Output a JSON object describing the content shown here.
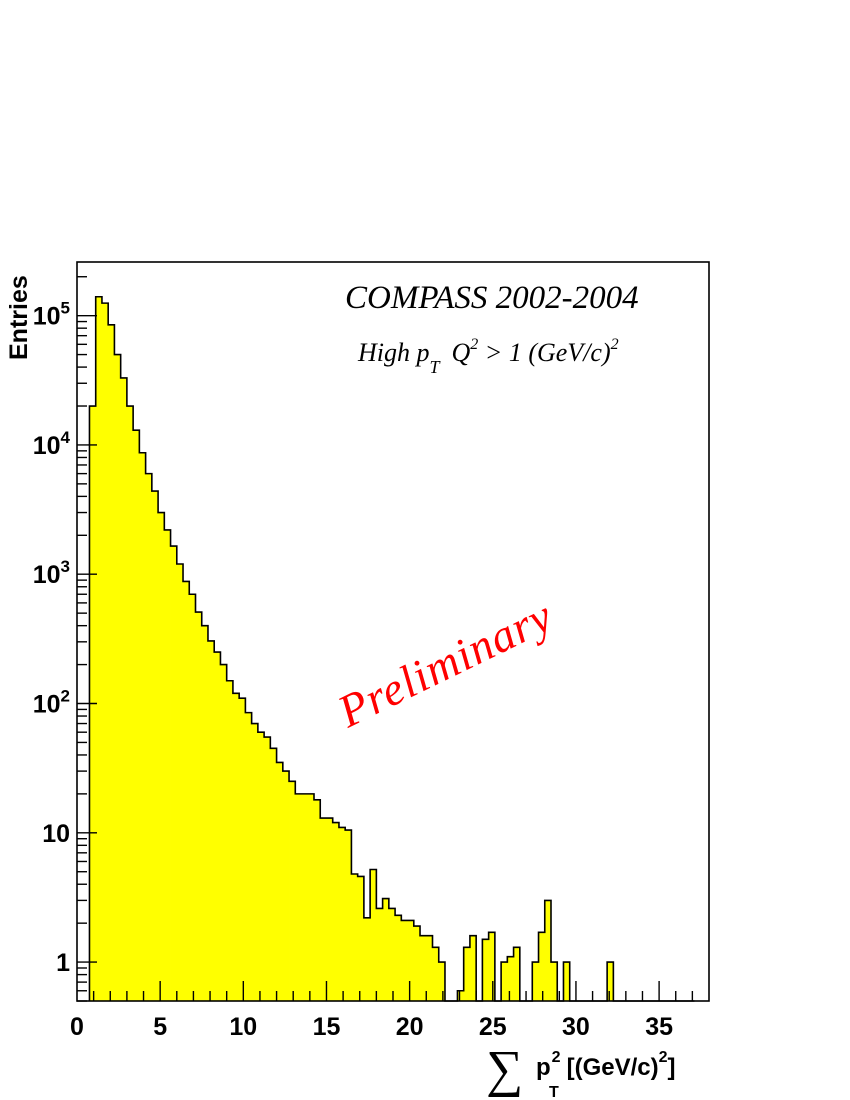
{
  "chart_data": {
    "type": "bar",
    "style": "step-histogram",
    "y_scale": "log",
    "xlim": [
      0,
      38
    ],
    "ylim": [
      0.5,
      260000
    ],
    "grid": false,
    "fill_color": "#ffff00",
    "line_color": "#000000",
    "watermark_color": "#ff0000",
    "ylabel": "Entries",
    "xlabel": {
      "sum_symbol": "∑",
      "var": "p",
      "sup": "2",
      "sub": "T",
      "unit_open": "[(GeV/c)",
      "unit_sup": "2",
      "unit_close": "]"
    },
    "annotations": {
      "title": "COMPASS 2002-2004",
      "cut": {
        "a": "High p",
        "a_sub": "T",
        "b": "Q",
        "b_sup": "2",
        "c": " > 1 (GeV/c)",
        "c_sup": "2"
      },
      "watermark": "Preliminary"
    },
    "x_ticks": [
      {
        "value": 0,
        "label": "0"
      },
      {
        "value": 5,
        "label": "5"
      },
      {
        "value": 10,
        "label": "10"
      },
      {
        "value": 15,
        "label": "15"
      },
      {
        "value": 20,
        "label": "20"
      },
      {
        "value": 25,
        "label": "25"
      },
      {
        "value": 30,
        "label": "30"
      },
      {
        "value": 35,
        "label": "35"
      }
    ],
    "y_ticks": [
      {
        "value": 1,
        "base": "1",
        "exp": ""
      },
      {
        "value": 10,
        "base": "10",
        "exp": ""
      },
      {
        "value": 100,
        "base": "10",
        "exp": "2"
      },
      {
        "value": 1000,
        "base": "10",
        "exp": "3"
      },
      {
        "value": 10000,
        "base": "10",
        "exp": "4"
      },
      {
        "value": 100000,
        "base": "10",
        "exp": "5"
      }
    ],
    "bin_width": 0.375,
    "bin_start": 0.75,
    "values": [
      20000,
      140000,
      125000,
      85000,
      50000,
      33000,
      20000,
      13000,
      8700,
      6000,
      4400,
      3000,
      2200,
      1650,
      1200,
      880,
      700,
      510,
      400,
      305,
      250,
      200,
      150,
      120,
      110,
      85,
      70,
      60,
      55,
      45,
      35,
      30,
      25,
      20,
      20,
      20,
      18,
      13,
      13,
      12,
      11,
      10.5,
      4.8,
      4.6,
      2.2,
      5.2,
      2.6,
      3.1,
      2.6,
      2.3,
      2.1,
      2.1,
      1.9,
      1.6,
      1.6,
      1.3,
      1.0,
      0,
      0,
      0.6,
      1.3,
      1.6,
      0,
      1.5,
      1.7,
      0,
      1.0,
      1.1,
      1.3,
      0.5,
      0,
      1.0,
      1.7,
      3.0,
      1.0,
      0,
      1.0,
      0,
      0.3,
      0,
      0.5,
      0,
      0,
      1.0,
      0,
      0,
      0,
      0,
      0,
      0,
      0,
      0,
      0,
      0,
      0,
      0,
      0
    ]
  }
}
